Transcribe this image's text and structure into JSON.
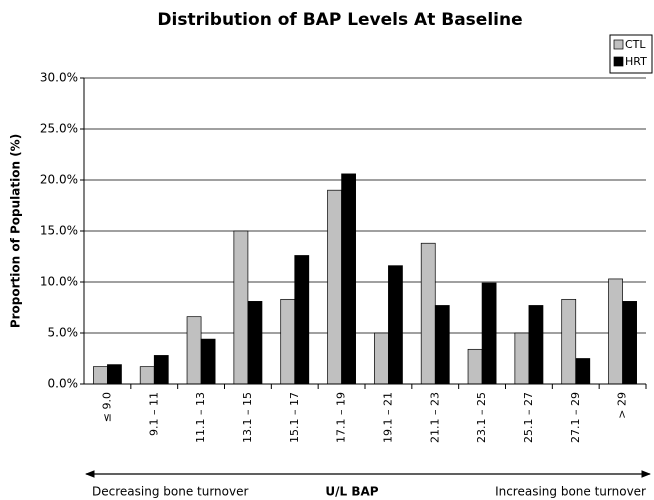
{
  "chart_data": {
    "type": "bar",
    "title": "Distribution of BAP Levels At Baseline",
    "x_label": "U/L BAP",
    "y_label": "Proportion of Population (%)",
    "annotations": [
      "Decreasing bone turnover",
      "Increasing bone turnover"
    ],
    "categories": [
      "≤ 9.0",
      "9.1 – 11",
      "11.1 – 13",
      "13.1 – 15",
      "15.1 – 17",
      "17.1 – 19",
      "19.1 – 21",
      "21.1 – 23",
      "23.1 – 25",
      "25.1 – 27",
      "27.1 – 29",
      "> 29"
    ],
    "series": [
      {
        "name": "CTL",
        "color": "#c0c0c0",
        "values": [
          1.7,
          1.7,
          6.6,
          15.0,
          8.3,
          19.0,
          5.0,
          13.8,
          3.4,
          5.0,
          8.3,
          10.3
        ]
      },
      {
        "name": "HRT",
        "color": "#000000",
        "values": [
          1.9,
          2.8,
          4.4,
          8.1,
          12.6,
          20.6,
          11.6,
          7.7,
          9.9,
          7.7,
          2.5,
          8.1
        ]
      }
    ],
    "ylim": [
      0,
      30
    ],
    "yticks": [
      {
        "value": 0,
        "label": "0.0%"
      },
      {
        "value": 5,
        "label": "5.0%"
      },
      {
        "value": 10,
        "label": "10.0%"
      },
      {
        "value": 15,
        "label": "15.0%"
      },
      {
        "value": 20,
        "label": "20.0%"
      },
      {
        "value": 25,
        "label": "25.0%"
      },
      {
        "value": 30,
        "label": "30.0%"
      }
    ],
    "grid": true,
    "legend": "top-right"
  }
}
